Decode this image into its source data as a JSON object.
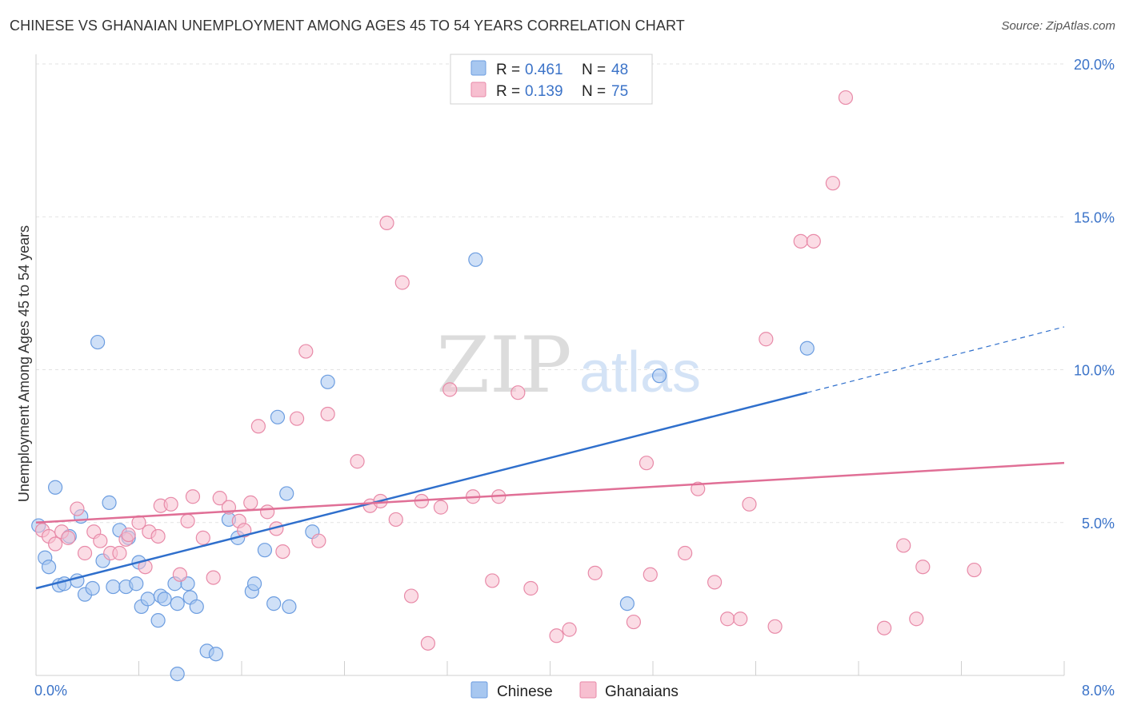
{
  "header": {
    "title": "CHINESE VS GHANAIAN UNEMPLOYMENT AMONG AGES 45 TO 54 YEARS CORRELATION CHART",
    "source": "Source: ZipAtlas.com"
  },
  "watermark": {
    "zip": "ZIP",
    "atlas": "atlas"
  },
  "legend_top": [
    {
      "r_label": "R =",
      "r_value": "0.461",
      "n_label": "N =",
      "n_value": "48"
    },
    {
      "r_label": "R =",
      "r_value": "0.139",
      "n_label": "N =",
      "n_value": "75"
    }
  ],
  "chart_data": {
    "type": "scatter",
    "ylabel": "Unemployment Among Ages 45 to 54 years",
    "xlabel": "",
    "xlim": [
      0,
      8
    ],
    "ylim": [
      0,
      20
    ],
    "x_tick_labels": [
      "0.0%",
      "8.0%"
    ],
    "y_ticks": [
      5,
      10,
      15,
      20
    ],
    "y_tick_labels": [
      "5.0%",
      "10.0%",
      "15.0%",
      "20.0%"
    ],
    "grid": true,
    "legend_position": "top-center",
    "series": [
      {
        "name": "Chinese",
        "color": "#a7c7f0",
        "edge": "#6c9de0",
        "line_color": "#2f6fcc",
        "trend": {
          "x0": 0,
          "y0": 2.85,
          "x1": 6,
          "y1": 9.25,
          "dash_to_x": 8,
          "dash_to_y": 11.4
        },
        "points": [
          [
            0.02,
            4.9
          ],
          [
            0.07,
            3.85
          ],
          [
            0.1,
            3.55
          ],
          [
            0.15,
            6.15
          ],
          [
            0.18,
            2.95
          ],
          [
            0.22,
            3.0
          ],
          [
            0.26,
            4.55
          ],
          [
            0.32,
            3.1
          ],
          [
            0.35,
            5.2
          ],
          [
            0.38,
            2.65
          ],
          [
            0.44,
            2.85
          ],
          [
            0.48,
            10.9
          ],
          [
            0.52,
            3.75
          ],
          [
            0.57,
            5.65
          ],
          [
            0.6,
            2.9
          ],
          [
            0.65,
            4.75
          ],
          [
            0.7,
            2.9
          ],
          [
            0.72,
            4.5
          ],
          [
            0.78,
            3.0
          ],
          [
            0.8,
            3.7
          ],
          [
            0.82,
            2.25
          ],
          [
            0.87,
            2.5
          ],
          [
            0.95,
            1.8
          ],
          [
            0.97,
            2.6
          ],
          [
            1.0,
            2.5
          ],
          [
            1.08,
            3.0
          ],
          [
            1.1,
            2.35
          ],
          [
            1.18,
            3.0
          ],
          [
            1.2,
            2.55
          ],
          [
            1.25,
            2.25
          ],
          [
            1.33,
            0.8
          ],
          [
            1.4,
            0.7
          ],
          [
            1.5,
            5.1
          ],
          [
            1.57,
            4.5
          ],
          [
            1.68,
            2.75
          ],
          [
            1.7,
            3.0
          ],
          [
            1.78,
            4.1
          ],
          [
            1.85,
            2.35
          ],
          [
            1.88,
            8.45
          ],
          [
            1.95,
            5.95
          ],
          [
            1.97,
            2.25
          ],
          [
            2.15,
            4.7
          ],
          [
            2.27,
            9.6
          ],
          [
            3.42,
            13.6
          ],
          [
            4.6,
            2.35
          ],
          [
            4.85,
            9.8
          ],
          [
            6.0,
            10.7
          ],
          [
            1.1,
            0.05
          ]
        ]
      },
      {
        "name": "Ghanaians",
        "color": "#f7bfd0",
        "edge": "#e88aa8",
        "line_color": "#e06f96",
        "trend": {
          "x0": 0,
          "y0": 5.0,
          "x1": 8,
          "y1": 6.95
        },
        "points": [
          [
            0.05,
            4.75
          ],
          [
            0.1,
            4.55
          ],
          [
            0.15,
            4.3
          ],
          [
            0.2,
            4.7
          ],
          [
            0.25,
            4.5
          ],
          [
            0.32,
            5.45
          ],
          [
            0.38,
            4.0
          ],
          [
            0.45,
            4.7
          ],
          [
            0.5,
            4.4
          ],
          [
            0.58,
            4.0
          ],
          [
            0.65,
            4.0
          ],
          [
            0.7,
            4.45
          ],
          [
            0.72,
            4.6
          ],
          [
            0.8,
            5.0
          ],
          [
            0.85,
            3.55
          ],
          [
            0.88,
            4.7
          ],
          [
            0.95,
            4.55
          ],
          [
            0.97,
            5.55
          ],
          [
            1.05,
            5.6
          ],
          [
            1.12,
            3.3
          ],
          [
            1.18,
            5.05
          ],
          [
            1.22,
            5.85
          ],
          [
            1.3,
            4.5
          ],
          [
            1.38,
            3.2
          ],
          [
            1.43,
            5.8
          ],
          [
            1.5,
            5.5
          ],
          [
            1.58,
            5.05
          ],
          [
            1.62,
            4.75
          ],
          [
            1.67,
            5.65
          ],
          [
            1.73,
            8.15
          ],
          [
            1.8,
            5.35
          ],
          [
            1.87,
            4.8
          ],
          [
            1.92,
            4.05
          ],
          [
            2.03,
            8.4
          ],
          [
            2.1,
            10.6
          ],
          [
            2.2,
            4.4
          ],
          [
            2.27,
            8.55
          ],
          [
            2.5,
            7.0
          ],
          [
            2.6,
            5.55
          ],
          [
            2.68,
            5.7
          ],
          [
            2.73,
            14.8
          ],
          [
            2.8,
            5.1
          ],
          [
            2.85,
            12.85
          ],
          [
            2.92,
            2.6
          ],
          [
            3.0,
            5.7
          ],
          [
            3.05,
            1.05
          ],
          [
            3.15,
            5.5
          ],
          [
            3.22,
            9.35
          ],
          [
            3.4,
            5.85
          ],
          [
            3.55,
            3.1
          ],
          [
            3.6,
            5.85
          ],
          [
            3.75,
            9.25
          ],
          [
            3.85,
            2.85
          ],
          [
            4.05,
            1.3
          ],
          [
            4.15,
            1.5
          ],
          [
            4.35,
            3.35
          ],
          [
            4.65,
            1.75
          ],
          [
            4.75,
            6.95
          ],
          [
            4.78,
            3.3
          ],
          [
            5.05,
            4.0
          ],
          [
            5.15,
            6.1
          ],
          [
            5.28,
            3.05
          ],
          [
            5.38,
            1.85
          ],
          [
            5.48,
            1.85
          ],
          [
            5.55,
            5.6
          ],
          [
            5.68,
            11.0
          ],
          [
            5.75,
            1.6
          ],
          [
            5.95,
            14.2
          ],
          [
            6.05,
            14.2
          ],
          [
            6.2,
            16.1
          ],
          [
            6.3,
            18.9
          ],
          [
            6.6,
            1.55
          ],
          [
            6.75,
            4.25
          ],
          [
            6.85,
            1.85
          ],
          [
            6.9,
            3.55
          ],
          [
            7.3,
            3.45
          ]
        ]
      }
    ]
  }
}
